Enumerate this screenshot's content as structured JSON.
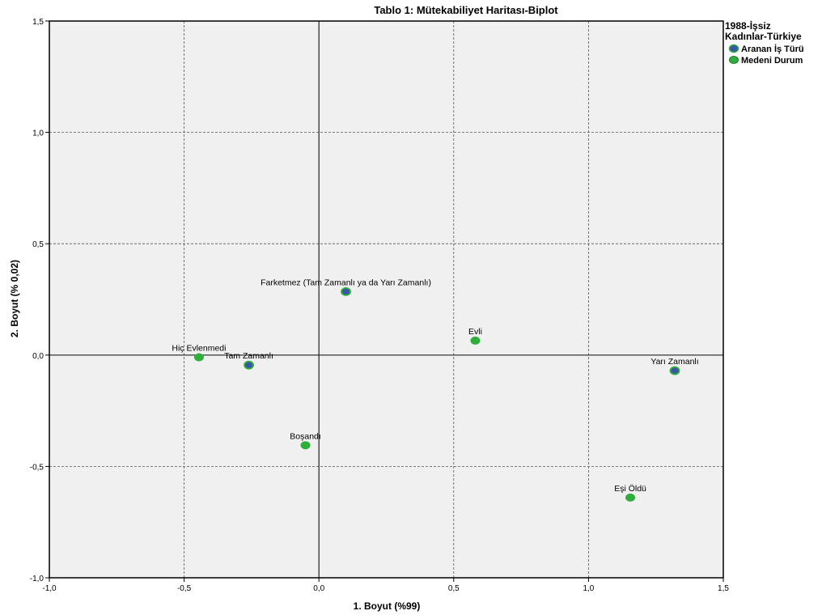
{
  "chart_data": {
    "type": "scatter",
    "title": "Tablo 1: Mütekabiliyet Haritası-Biplot",
    "xlabel": "1. Boyut (%99)",
    "ylabel": "2. Boyut (% 0,02)",
    "xlim": [
      -1.0,
      1.5
    ],
    "ylim": [
      -1.0,
      1.5
    ],
    "xticks": [
      -1.0,
      -0.5,
      0.0,
      0.5,
      1.0,
      1.5
    ],
    "yticks": [
      -1.0,
      -0.5,
      0.0,
      0.5,
      1.0,
      1.5
    ],
    "xtick_labels": [
      "-1,0",
      "-0,5",
      "0,0",
      "0,5",
      "1,0",
      "1,5"
    ],
    "ytick_labels": [
      "-1,0",
      "-0,5",
      "0,0",
      "0,5",
      "1,0",
      "1,5"
    ],
    "grid": true,
    "legend_position": "right",
    "legend": {
      "title_line1": "1988-İşsiz",
      "title_line2": "Kadınlar-Türkiye"
    },
    "series": [
      {
        "name": "Aranan İş Türü",
        "color": "#3a56a8",
        "edge_color": "#2fae3c",
        "points": [
          {
            "label": "Farketmez (Tam Zamanlı ya da Yarı Zamanlı)",
            "x": 0.1,
            "y": 0.285
          },
          {
            "label": "Tam Zamanlı",
            "x": -0.26,
            "y": -0.045
          },
          {
            "label": "Yarı Zamanlı",
            "x": 1.32,
            "y": -0.07
          }
        ]
      },
      {
        "name": "Medeni Durum",
        "color": "#2fae3c",
        "edge_color": "#2fae3c",
        "points": [
          {
            "label": "Hiç Evlenmedi",
            "x": -0.445,
            "y": -0.01
          },
          {
            "label": "Evli",
            "x": 0.58,
            "y": 0.065
          },
          {
            "label": "Boşandı",
            "x": -0.05,
            "y": -0.405
          },
          {
            "label": "Eşi Öldü",
            "x": 1.155,
            "y": -0.64
          }
        ]
      }
    ]
  }
}
